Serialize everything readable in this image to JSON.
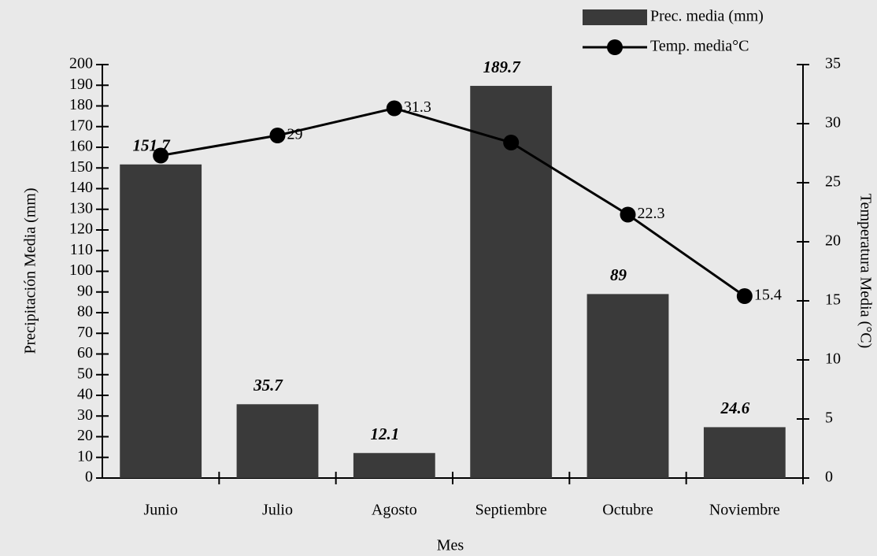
{
  "chart_data": {
    "type": "combo",
    "categories": [
      "Junio",
      "Julio",
      "Agosto",
      "Septiembre",
      "Octubre",
      "Noviembre"
    ],
    "series": [
      {
        "name": "Prec. media (mm)",
        "type": "bar",
        "color": "#3a3a3a",
        "values": [
          151.7,
          35.7,
          12.1,
          189.7,
          89,
          24.6
        ]
      },
      {
        "name": "Temp. media°C",
        "type": "line",
        "axis": "y2",
        "color": "#000000",
        "values": [
          27.3,
          29,
          31.3,
          28.4,
          22.3,
          15.4
        ],
        "value_labels": [
          null,
          "29",
          "31.3",
          null,
          "22.3",
          "15.4"
        ]
      }
    ],
    "xlabel": "Mes",
    "ylabel": "Precipitación Media (mm)",
    "y2label": "Temperatura Media (°C)",
    "ylim": [
      0,
      200
    ],
    "yticks": [
      0,
      10,
      20,
      30,
      40,
      50,
      60,
      70,
      80,
      90,
      100,
      110,
      120,
      130,
      140,
      150,
      160,
      170,
      180,
      190,
      200
    ],
    "y2lim": [
      0,
      35
    ],
    "y2ticks": [
      0,
      5,
      10,
      15,
      20,
      25,
      30,
      35
    ],
    "legend": "top-right"
  }
}
